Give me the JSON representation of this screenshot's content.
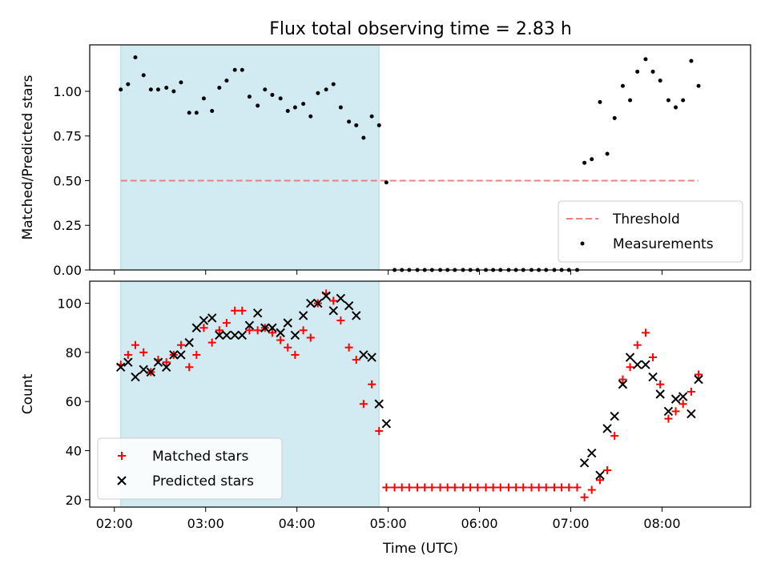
{
  "chart_data": {
    "title": "Flux total observing time = 2.83 h",
    "x_unit": "hours (UTC)",
    "xlim": [
      1.73,
      8.97
    ],
    "xticks": [
      2,
      3,
      4,
      5,
      6,
      7,
      8
    ],
    "xtick_labels": [
      "02:00",
      "03:00",
      "04:00",
      "05:00",
      "06:00",
      "07:00",
      "08:00"
    ],
    "xlabel": "Time (UTC)",
    "shaded_region": {
      "x": [
        2.07,
        4.9
      ],
      "color": "#add8e6"
    },
    "panels": [
      {
        "type": "scatter",
        "ylabel": "Matched/Predicted stars",
        "ylim": [
          0,
          1.26
        ],
        "yticks": [
          0,
          0.25,
          0.5,
          0.75,
          1.0
        ],
        "ytick_labels": [
          "0.00",
          "0.25",
          "0.50",
          "0.75",
          "1.00"
        ],
        "legend_position": "lower-right",
        "threshold": {
          "name": "Threshold",
          "value": 0.5,
          "x_range": [
            2.07,
            8.4
          ],
          "color": "#f08080"
        },
        "series": [
          {
            "name": "Measurements",
            "color": "#000000",
            "x": [
              2.07,
              2.15,
              2.23,
              2.32,
              2.4,
              2.48,
              2.57,
              2.65,
              2.73,
              2.82,
              2.9,
              2.98,
              3.07,
              3.15,
              3.23,
              3.32,
              3.4,
              3.48,
              3.57,
              3.65,
              3.73,
              3.82,
              3.9,
              3.98,
              4.07,
              4.15,
              4.23,
              4.32,
              4.4,
              4.48,
              4.57,
              4.65,
              4.73,
              4.82,
              4.9,
              4.98,
              5.07,
              5.15,
              5.23,
              5.32,
              5.4,
              5.48,
              5.57,
              5.65,
              5.73,
              5.82,
              5.9,
              5.98,
              6.07,
              6.15,
              6.23,
              6.32,
              6.4,
              6.48,
              6.57,
              6.65,
              6.73,
              6.82,
              6.9,
              6.98,
              7.07,
              7.15,
              7.23,
              7.32,
              7.4,
              7.48,
              7.57,
              7.65,
              7.73,
              7.82,
              7.9,
              7.98,
              8.07,
              8.15,
              8.23,
              8.32,
              8.4
            ],
            "y": [
              1.01,
              1.04,
              1.19,
              1.09,
              1.01,
              1.01,
              1.02,
              1.0,
              1.05,
              0.88,
              0.88,
              0.96,
              0.89,
              1.02,
              1.06,
              1.12,
              1.12,
              0.97,
              0.92,
              1.01,
              0.98,
              0.96,
              0.89,
              0.91,
              0.93,
              0.86,
              0.99,
              1.01,
              1.04,
              0.91,
              0.83,
              0.81,
              0.74,
              0.86,
              0.81,
              0.49,
              0,
              0,
              0,
              0,
              0,
              0,
              0,
              0,
              0,
              0,
              0,
              0,
              0,
              0,
              0,
              0,
              0,
              0,
              0,
              0,
              0,
              0,
              0,
              0,
              0,
              0.6,
              0.62,
              0.94,
              0.65,
              0.85,
              1.03,
              0.95,
              1.11,
              1.18,
              1.11,
              1.06,
              0.95,
              0.91,
              0.95,
              1.17,
              1.03
            ]
          }
        ]
      },
      {
        "type": "scatter",
        "ylabel": "Count",
        "ylim": [
          17,
          109
        ],
        "yticks": [
          20,
          40,
          60,
          80,
          100
        ],
        "ytick_labels": [
          "20",
          "40",
          "60",
          "80",
          "100"
        ],
        "legend_position": "lower-left",
        "series": [
          {
            "name": "Matched stars",
            "marker": "+",
            "color": "#ff0000",
            "x": [
              2.07,
              2.15,
              2.23,
              2.32,
              2.4,
              2.48,
              2.57,
              2.65,
              2.73,
              2.82,
              2.9,
              2.98,
              3.07,
              3.15,
              3.23,
              3.32,
              3.4,
              3.48,
              3.57,
              3.65,
              3.73,
              3.82,
              3.9,
              3.98,
              4.07,
              4.15,
              4.23,
              4.32,
              4.4,
              4.48,
              4.57,
              4.65,
              4.73,
              4.82,
              4.9,
              4.98,
              5.07,
              5.15,
              5.23,
              5.32,
              5.4,
              5.48,
              5.57,
              5.65,
              5.73,
              5.82,
              5.9,
              5.98,
              6.07,
              6.15,
              6.23,
              6.32,
              6.4,
              6.48,
              6.57,
              6.65,
              6.73,
              6.82,
              6.9,
              6.98,
              7.07,
              7.15,
              7.23,
              7.32,
              7.4,
              7.48,
              7.57,
              7.65,
              7.73,
              7.82,
              7.9,
              7.98,
              8.07,
              8.15,
              8.23,
              8.32,
              8.4
            ],
            "y": [
              75,
              79,
              83,
              80,
              72,
              77,
              76,
              79,
              83,
              74,
              79,
              90,
              84,
              89,
              92,
              97,
              97,
              89,
              89,
              90,
              88,
              85,
              82,
              79,
              89,
              86,
              100,
              104,
              101,
              93,
              82,
              77,
              59,
              67,
              48,
              25,
              25,
              25,
              25,
              25,
              25,
              25,
              25,
              25,
              25,
              25,
              25,
              25,
              25,
              25,
              25,
              25,
              25,
              25,
              25,
              25,
              25,
              25,
              25,
              25,
              25,
              21,
              24,
              28,
              32,
              46,
              69,
              74,
              83,
              88,
              78,
              67,
              53,
              56,
              59,
              64,
              71
            ]
          },
          {
            "name": "Predicted stars",
            "marker": "x",
            "color": "#000000",
            "x": [
              2.07,
              2.15,
              2.23,
              2.32,
              2.4,
              2.48,
              2.57,
              2.65,
              2.73,
              2.82,
              2.9,
              2.98,
              3.07,
              3.15,
              3.23,
              3.32,
              3.4,
              3.48,
              3.57,
              3.65,
              3.73,
              3.82,
              3.9,
              3.98,
              4.07,
              4.15,
              4.23,
              4.32,
              4.4,
              4.48,
              4.57,
              4.65,
              4.73,
              4.82,
              4.9,
              4.98,
              7.15,
              7.23,
              7.32,
              7.4,
              7.48,
              7.57,
              7.65,
              7.73,
              7.82,
              7.9,
              7.98,
              8.07,
              8.15,
              8.23,
              8.32,
              8.4
            ],
            "y": [
              74,
              76,
              70,
              73,
              72,
              76,
              74,
              79,
              79,
              84,
              90,
              93,
              94,
              87,
              87,
              87,
              87,
              91,
              96,
              90,
              90,
              88,
              92,
              87,
              95,
              100,
              100,
              103,
              97,
              102,
              99,
              95,
              79,
              78,
              59,
              51,
              35,
              39,
              30,
              49,
              54,
              67,
              78,
              75,
              75,
              70,
              63,
              56,
              61,
              62,
              55,
              69
            ]
          }
        ]
      }
    ]
  }
}
